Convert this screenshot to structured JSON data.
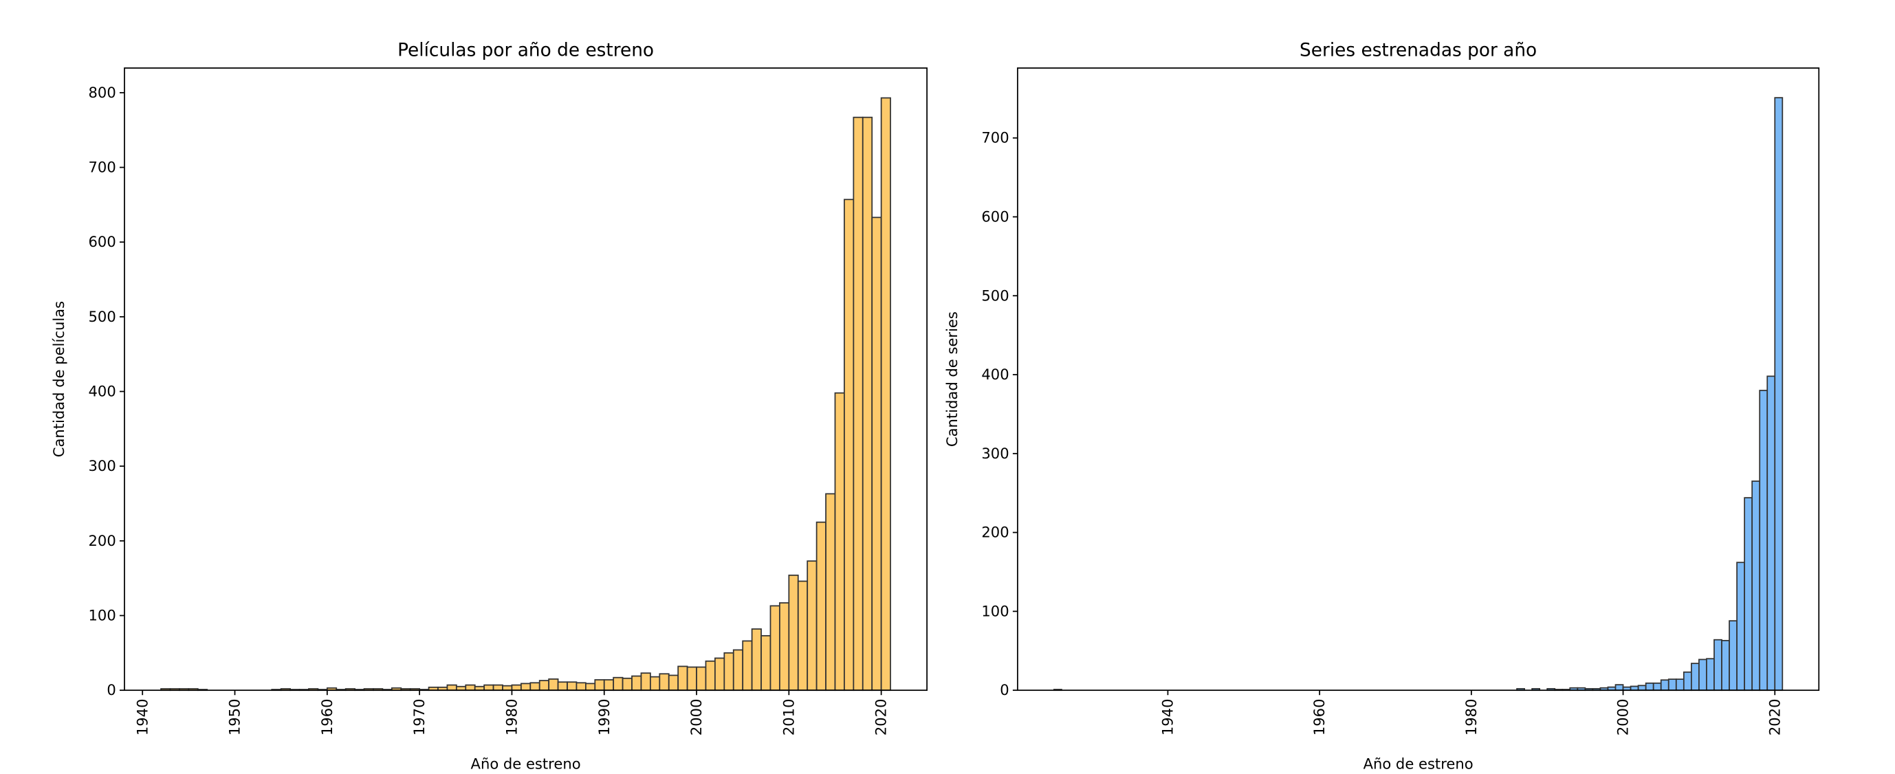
{
  "chart_data": [
    {
      "type": "histogram",
      "title": "Películas por año de estreno",
      "xlabel": "Año de estreno",
      "ylabel": "Cantidad de películas",
      "color": "#fdca6b",
      "edgecolor": "#333333",
      "bins": [
        1942,
        1943,
        1944,
        1945,
        1946,
        1947,
        1948,
        1949,
        1950,
        1951,
        1952,
        1953,
        1954,
        1955,
        1956,
        1957,
        1958,
        1959,
        1960,
        1961,
        1962,
        1963,
        1964,
        1965,
        1966,
        1967,
        1968,
        1969,
        1970,
        1971,
        1972,
        1973,
        1974,
        1975,
        1976,
        1977,
        1978,
        1979,
        1980,
        1981,
        1982,
        1983,
        1984,
        1985,
        1986,
        1987,
        1988,
        1989,
        1990,
        1991,
        1992,
        1993,
        1994,
        1995,
        1996,
        1997,
        1998,
        1999,
        2000,
        2001,
        2002,
        2003,
        2004,
        2005,
        2006,
        2007,
        2008,
        2009,
        2010,
        2011,
        2012,
        2013,
        2014,
        2015,
        2016,
        2017,
        2018,
        2019,
        2020,
        2021
      ],
      "values": [
        2,
        2,
        2,
        2,
        1,
        0,
        0,
        0,
        0,
        0,
        0,
        0,
        1,
        2,
        1,
        1,
        2,
        1,
        3,
        1,
        2,
        1,
        2,
        2,
        1,
        3,
        2,
        2,
        1,
        4,
        4,
        7,
        5,
        7,
        5,
        7,
        7,
        6,
        7,
        9,
        10,
        13,
        15,
        11,
        11,
        10,
        9,
        14,
        14,
        17,
        16,
        19,
        23,
        18,
        22,
        20,
        32,
        31,
        31,
        39,
        43,
        50,
        54,
        66,
        82,
        73,
        113,
        117,
        154,
        146,
        173,
        225,
        263,
        398,
        657,
        767,
        767,
        633,
        793
      ],
      "xlim": [
        1938.05,
        2024.95
      ],
      "xticks": [
        1940,
        1950,
        1960,
        1970,
        1980,
        1990,
        2000,
        2010,
        2020
      ],
      "ylim": [
        0,
        833
      ],
      "yticks": [
        0,
        100,
        200,
        300,
        400,
        500,
        600,
        700,
        800
      ]
    },
    {
      "type": "histogram",
      "title": "Series estrenadas por año",
      "xlabel": "Año de estreno",
      "ylabel": "Cantidad de series",
      "color": "#7ab8f5",
      "edgecolor": "#333333",
      "bins": [
        1925,
        1926,
        1927,
        1928,
        1929,
        1930,
        1931,
        1932,
        1933,
        1934,
        1935,
        1936,
        1937,
        1938,
        1939,
        1940,
        1941,
        1942,
        1943,
        1944,
        1945,
        1946,
        1947,
        1948,
        1949,
        1950,
        1951,
        1952,
        1953,
        1954,
        1955,
        1956,
        1957,
        1958,
        1959,
        1960,
        1961,
        1962,
        1963,
        1964,
        1965,
        1966,
        1967,
        1968,
        1969,
        1970,
        1971,
        1972,
        1973,
        1974,
        1975,
        1976,
        1977,
        1978,
        1979,
        1980,
        1981,
        1982,
        1983,
        1984,
        1985,
        1986,
        1987,
        1988,
        1989,
        1990,
        1991,
        1992,
        1993,
        1994,
        1995,
        1996,
        1997,
        1998,
        1999,
        2000,
        2001,
        2002,
        2003,
        2004,
        2005,
        2006,
        2007,
        2008,
        2009,
        2010,
        2011,
        2012,
        2013,
        2014,
        2015,
        2016,
        2017,
        2018,
        2019,
        2020,
        2021
      ],
      "values": [
        1,
        0,
        0,
        0,
        0,
        0,
        0,
        0,
        0,
        0,
        0,
        0,
        0,
        0,
        0,
        0,
        0,
        0,
        0,
        0,
        0,
        0,
        0,
        0,
        0,
        0,
        0,
        0,
        0,
        0,
        0,
        0,
        0,
        0,
        0,
        0,
        0,
        0,
        0,
        0,
        0,
        0,
        0,
        0,
        0,
        0,
        0,
        0,
        0,
        0,
        0,
        0,
        0,
        0,
        0,
        0,
        0,
        0,
        0,
        0,
        0,
        2,
        0,
        2,
        0,
        2,
        1,
        1,
        3,
        3,
        2,
        2,
        3,
        4,
        7,
        4,
        5,
        6,
        9,
        9,
        13,
        14,
        14,
        23,
        34,
        39,
        40,
        64,
        63,
        88,
        162,
        244,
        265,
        380,
        398,
        751
      ],
      "xlim": [
        1920.2,
        2025.8
      ],
      "xticks": [
        1940,
        1960,
        1980,
        2000,
        2020
      ],
      "ylim": [
        0,
        788.6
      ],
      "yticks": [
        0,
        100,
        200,
        300,
        400,
        500,
        600,
        700
      ]
    }
  ]
}
